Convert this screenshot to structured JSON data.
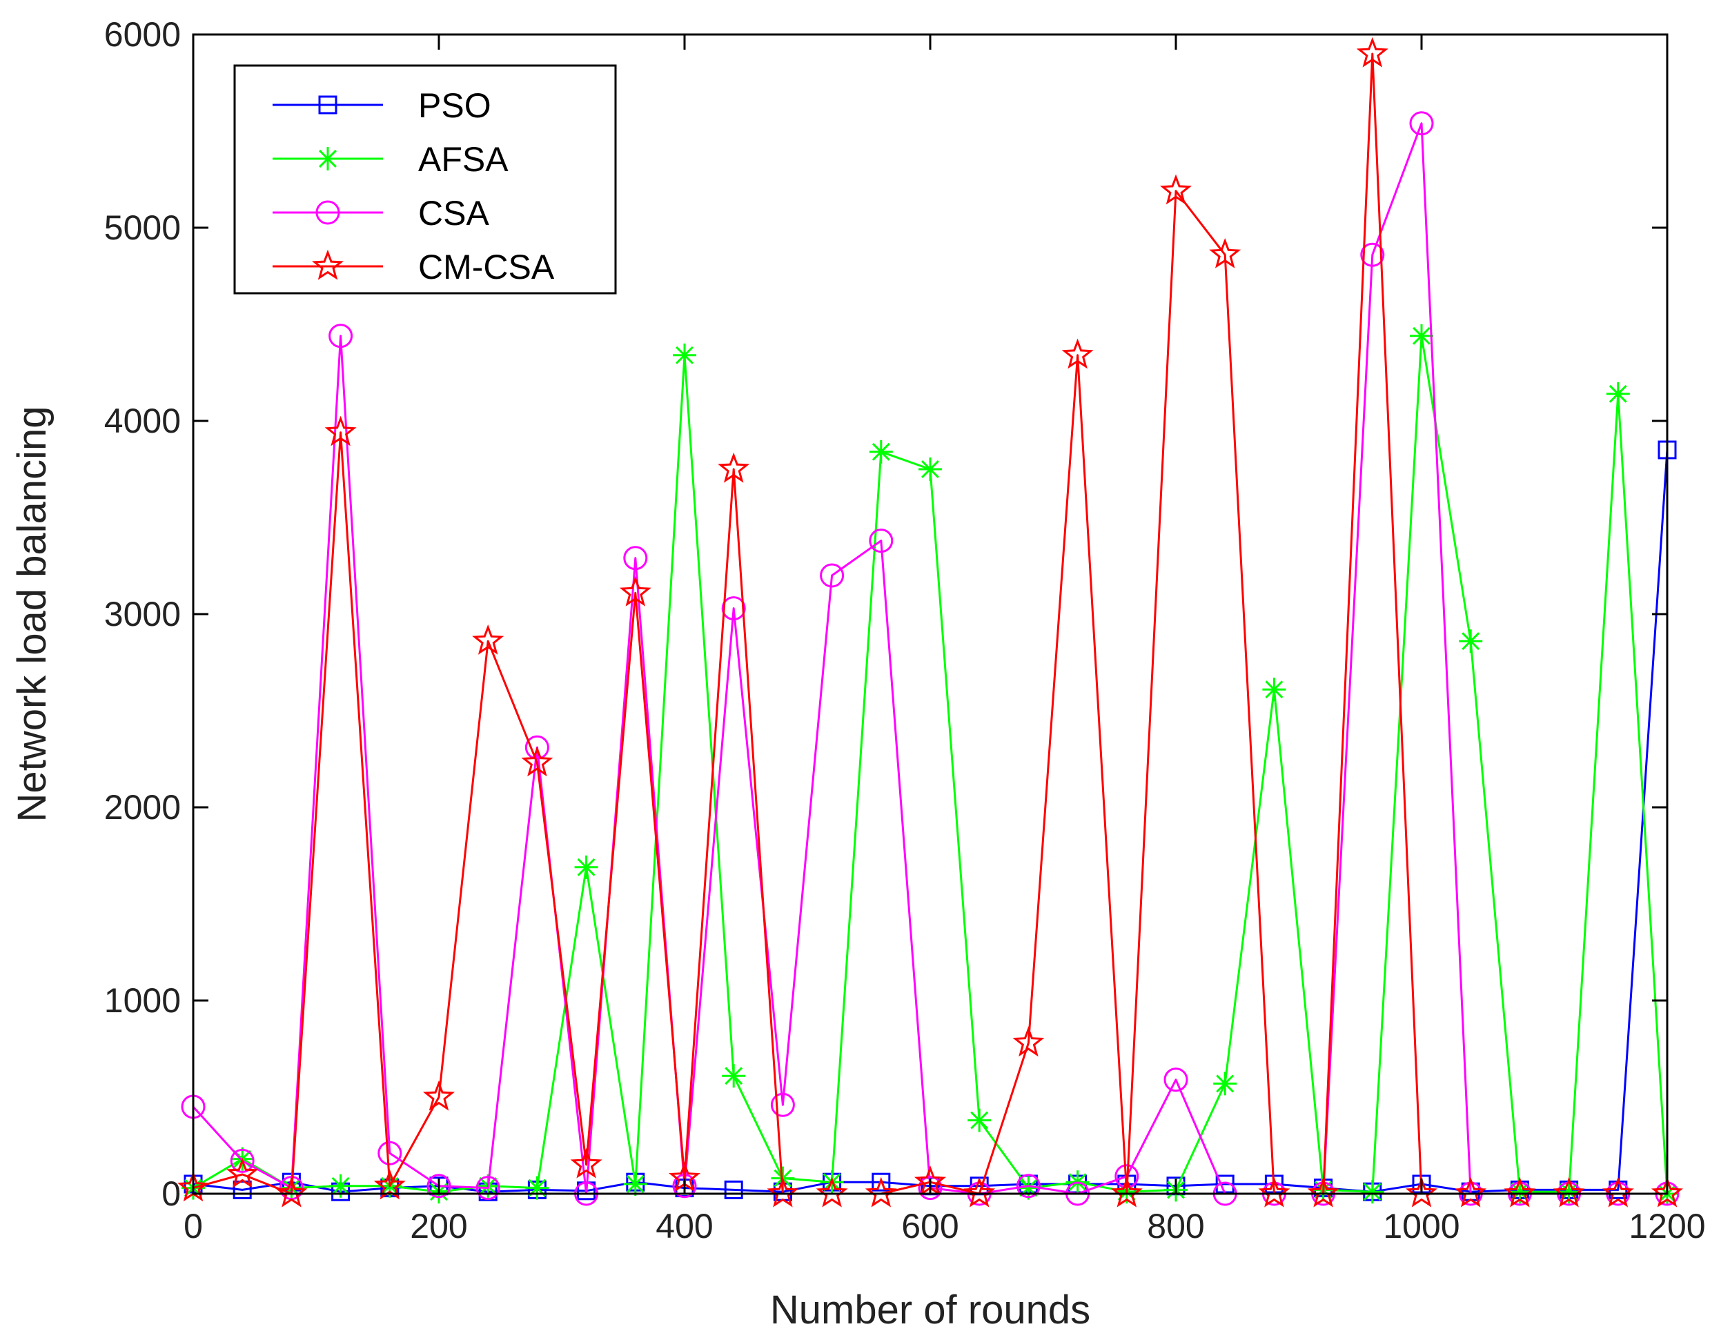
{
  "chart_data": {
    "type": "line",
    "title": "",
    "xlabel": "Number of rounds",
    "ylabel": "Network load balancing",
    "xlim": [
      0,
      1200
    ],
    "ylim": [
      0,
      6000
    ],
    "xticks": [
      0,
      200,
      400,
      600,
      800,
      1000,
      1200
    ],
    "yticks": [
      0,
      1000,
      2000,
      3000,
      4000,
      5000,
      6000
    ],
    "grid": false,
    "legend_position": "top-left",
    "x": [
      0,
      40,
      80,
      120,
      160,
      200,
      240,
      280,
      320,
      360,
      400,
      440,
      480,
      520,
      560,
      600,
      640,
      680,
      720,
      760,
      800,
      840,
      880,
      920,
      960,
      1000,
      1040,
      1080,
      1120,
      1160,
      1200
    ],
    "series": [
      {
        "name": "PSO",
        "color": "#0000FF",
        "marker": "square",
        "values": [
          50,
          20,
          60,
          10,
          30,
          40,
          10,
          20,
          15,
          60,
          30,
          20,
          10,
          60,
          60,
          40,
          40,
          50,
          50,
          50,
          40,
          50,
          50,
          30,
          10,
          50,
          10,
          20,
          20,
          20,
          3850
        ]
      },
      {
        "name": "AFSA",
        "color": "#00FF00",
        "marker": "asterisk",
        "values": [
          30,
          180,
          30,
          40,
          40,
          10,
          40,
          30,
          1690,
          50,
          4340,
          610,
          80,
          60,
          3840,
          3750,
          380,
          30,
          60,
          10,
          20,
          570,
          2610,
          20,
          10,
          4440,
          2860,
          10,
          10,
          4140,
          0
        ]
      },
      {
        "name": "CSA",
        "color": "#FF00FF",
        "marker": "circle",
        "values": [
          450,
          170,
          30,
          4440,
          210,
          40,
          30,
          2310,
          0,
          3290,
          40,
          3030,
          460,
          3200,
          3380,
          30,
          0,
          40,
          0,
          90,
          590,
          0,
          0,
          0,
          4860,
          5540,
          0,
          0,
          0,
          0,
          0
        ]
      },
      {
        "name": "CM-CSA",
        "color": "#FF0000",
        "marker": "star",
        "values": [
          30,
          100,
          0,
          3940,
          40,
          500,
          2860,
          2230,
          150,
          3110,
          80,
          3750,
          0,
          0,
          0,
          60,
          0,
          780,
          4340,
          0,
          5190,
          4860,
          0,
          0,
          5900,
          0,
          0,
          0,
          0,
          0,
          0
        ]
      }
    ]
  }
}
